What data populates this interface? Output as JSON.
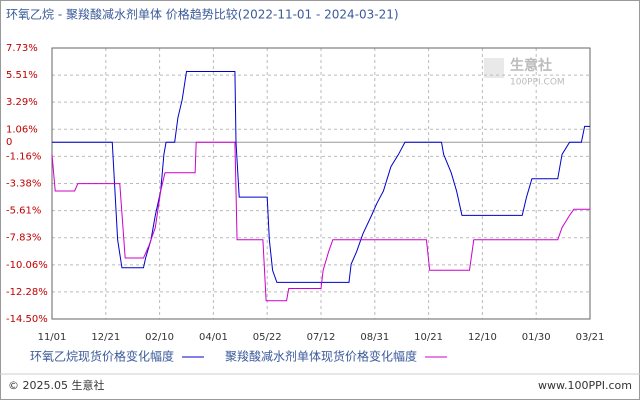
{
  "chart_data": {
    "type": "line",
    "title": "环氧乙烷 - 聚羧酸减水剂单体 价格趋势比较(2022-11-01 - 2024-03-21)",
    "watermark": "生意社",
    "watermark_sub": "100PPI.COM",
    "footer_left": "© 2025.05 生意社",
    "footer_right": "www.100PPI.com",
    "xlim": [
      0,
      500
    ],
    "xticks": [
      {
        "value": 0,
        "label": "11/01"
      },
      {
        "value": 50,
        "label": "12/21"
      },
      {
        "value": 100,
        "label": "02/10"
      },
      {
        "value": 150,
        "label": "04/01"
      },
      {
        "value": 200,
        "label": "05/22"
      },
      {
        "value": 250,
        "label": "07/12"
      },
      {
        "value": 300,
        "label": "08/31"
      },
      {
        "value": 350,
        "label": "10/21"
      },
      {
        "value": 400,
        "label": "12/10"
      },
      {
        "value": 450,
        "label": "01/30"
      },
      {
        "value": 500,
        "label": "03/21"
      }
    ],
    "ylim": [
      -14.5,
      7.73
    ],
    "yticks": [
      {
        "value": 7.73,
        "label": "7.73%"
      },
      {
        "value": 5.51,
        "label": "5.51%"
      },
      {
        "value": 3.29,
        "label": "3.29%"
      },
      {
        "value": 1.06,
        "label": "1.06%"
      },
      0,
      {
        "value": -1.16,
        "label": "-1.16%"
      },
      {
        "value": -3.38,
        "label": "-3.38%"
      },
      {
        "value": -5.61,
        "label": "-5.61%"
      },
      {
        "value": -7.83,
        "label": "-7.83%"
      },
      {
        "value": -10.06,
        "label": "-10.06%"
      },
      {
        "value": -12.28,
        "label": "-12.28%"
      },
      {
        "value": -14.5,
        "label": "-14.50%"
      }
    ],
    "grid": true,
    "series": [
      {
        "name": "环氧乙烷现货价格变化幅度",
        "color": "#0000cc",
        "x": [
          0,
          56,
          61,
          65,
          85,
          87,
          92,
          96,
          101,
          104,
          106,
          114,
          117,
          121,
          125,
          170,
          171,
          174,
          200,
          202,
          205,
          209,
          276,
          278,
          283,
          289,
          297,
          302,
          308,
          315,
          322,
          328,
          362,
          364,
          371,
          376,
          381,
          437,
          441,
          446,
          470,
          474,
          481,
          492,
          495,
          500
        ],
        "values": [
          0,
          0,
          -8,
          -10.3,
          -10.3,
          -9.5,
          -8,
          -6,
          -4,
          -1,
          0,
          0,
          2,
          3.5,
          5.8,
          5.8,
          0,
          -4.5,
          -4.5,
          -8,
          -10.5,
          -11.5,
          -11.5,
          -10,
          -9,
          -7.5,
          -6,
          -5,
          -4,
          -2,
          -1,
          0,
          0,
          -1,
          -2.5,
          -4,
          -6,
          -6,
          -4.5,
          -3,
          -3,
          -1,
          0,
          0,
          1.3,
          1.3
        ]
      },
      {
        "name": "聚羧酸减水剂单体现货价格变化幅度",
        "color": "#cc00cc",
        "x": [
          0,
          3,
          21,
          24,
          63,
          68,
          85,
          90,
          96,
          101,
          105,
          133,
          134,
          170,
          172,
          196,
          199,
          218,
          220,
          250,
          252,
          257,
          261,
          348,
          351,
          388,
          392,
          470,
          474,
          481,
          485,
          500
        ],
        "values": [
          -1,
          -4,
          -4,
          -3.4,
          -3.4,
          -9.5,
          -9.5,
          -8.5,
          -7,
          -4,
          -2.5,
          -2.5,
          0,
          0,
          -8,
          -8,
          -13,
          -13,
          -12,
          -12,
          -10.5,
          -9,
          -8,
          -8,
          -10.5,
          -10.5,
          -8,
          -8,
          -7,
          -6,
          -5.5,
          -5.5
        ]
      }
    ]
  }
}
